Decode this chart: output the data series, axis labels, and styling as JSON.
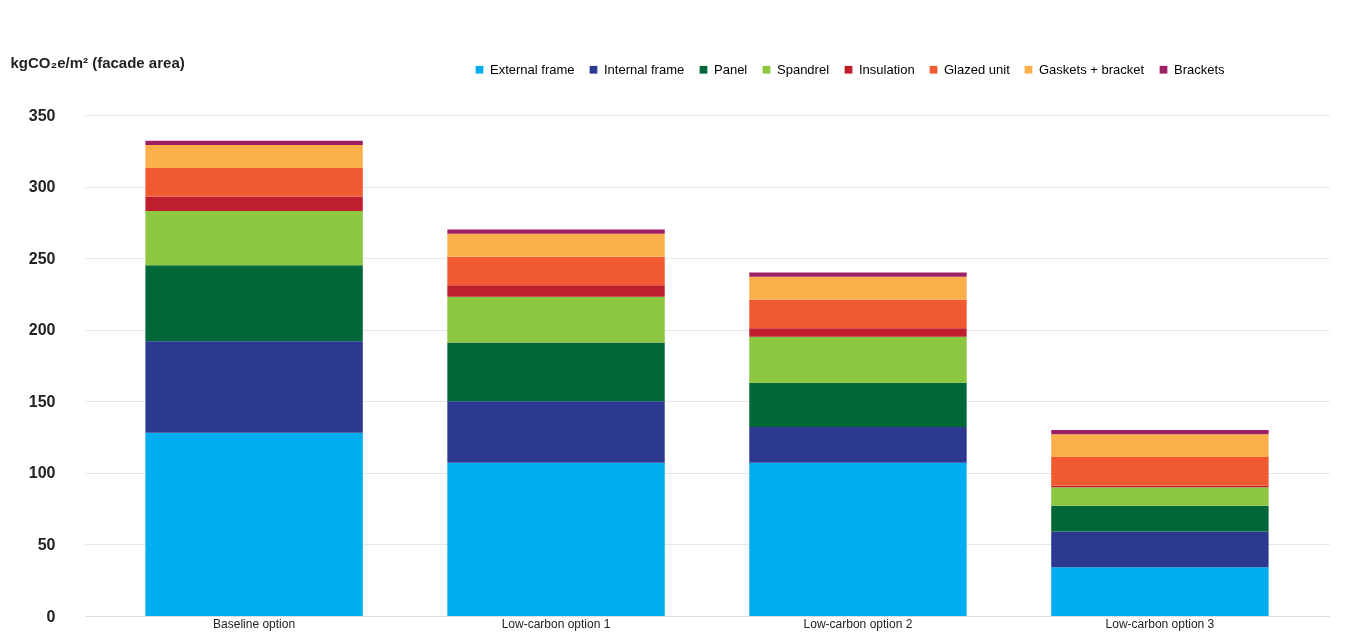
{
  "chart_data": {
    "type": "bar",
    "stacked": true,
    "ylabel": "kgCO₂e/m² (facade area)",
    "categories": [
      "Baseline option",
      "Low-carbon option 1",
      "Low-carbon option 2",
      "Low-carbon option 3"
    ],
    "series": [
      {
        "name": "External frame",
        "color": "#00aeef",
        "values": [
          128,
          107,
          107,
          34
        ]
      },
      {
        "name": "Internal frame",
        "color": "#2b3990",
        "values": [
          64,
          43,
          25,
          25
        ]
      },
      {
        "name": "Panel",
        "color": "#006838",
        "values": [
          53,
          41,
          31,
          18
        ]
      },
      {
        "name": "Spandrel",
        "color": "#8dc63f",
        "values": [
          38,
          32,
          32,
          13
        ]
      },
      {
        "name": "Insulation",
        "color": "#be1e2d",
        "values": [
          10,
          8,
          6,
          1
        ]
      },
      {
        "name": "Glazed unit",
        "color": "#f15a31",
        "values": [
          20,
          20,
          20,
          20
        ]
      },
      {
        "name": "Gaskets + bracket",
        "color": "#fbb04b",
        "values": [
          16,
          16,
          16,
          16
        ]
      },
      {
        "name": "Brackets",
        "color": "#9e1f63",
        "values": [
          3,
          3,
          3,
          3
        ]
      }
    ],
    "ylim": [
      0,
      350
    ],
    "yticks": [
      0,
      50,
      100,
      150,
      200,
      250,
      300,
      350
    ],
    "grid": "y",
    "legend": "top right"
  }
}
